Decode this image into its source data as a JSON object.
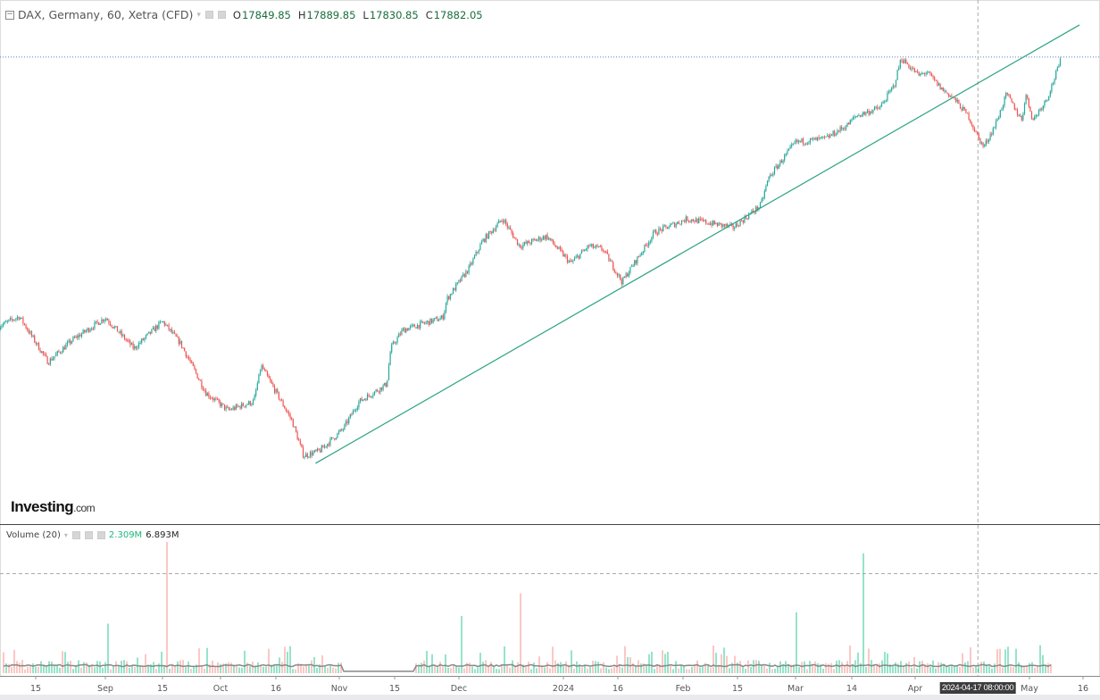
{
  "header": {
    "symbol": "DAX, Germany, 60, Xetra (CFD)",
    "open_label": "O",
    "open": "17849.85",
    "high_label": "H",
    "high": "17889.85",
    "low_label": "L",
    "low": "17830.85",
    "close_label": "C",
    "close": "17882.05"
  },
  "volume_pane": {
    "label": "Volume (20)",
    "current": "2.309M",
    "max": "6.893M"
  },
  "logo": {
    "brand": "Investing",
    "suffix": ".com"
  },
  "crosshair": {
    "label": "2024-04-17 08:00:00",
    "date": "2024-04-17"
  },
  "colors": {
    "up": "#26a69a",
    "down": "#ef5350",
    "trendline": "#2aa383",
    "hline": "#5b7fd6",
    "volume_up": "#4fd1a5",
    "volume_down": "#f7a39e",
    "volume_ma": "#888888"
  },
  "chart_data": {
    "type": "candlestick",
    "title": "DAX, Germany, 60, Xetra (CFD)",
    "x_ticks": [
      {
        "date": "2023-08-15",
        "label": "15"
      },
      {
        "date": "2023-09-01",
        "label": "Sep"
      },
      {
        "date": "2023-09-15",
        "label": "15"
      },
      {
        "date": "2023-10-01",
        "label": "Oct"
      },
      {
        "date": "2023-10-16",
        "label": "16"
      },
      {
        "date": "2023-11-01",
        "label": "Nov"
      },
      {
        "date": "2023-11-15",
        "label": "15"
      },
      {
        "date": "2023-12-01",
        "label": "Dec"
      },
      {
        "date": "2024-01-01",
        "label": "2024"
      },
      {
        "date": "2024-01-16",
        "label": "16"
      },
      {
        "date": "2024-02-01",
        "label": "Feb"
      },
      {
        "date": "2024-02-15",
        "label": "15"
      },
      {
        "date": "2024-03-01",
        "label": "Mar"
      },
      {
        "date": "2024-03-14",
        "label": "14"
      },
      {
        "date": "2024-04-01",
        "label": "Apr"
      },
      {
        "date": "2024-05-01",
        "label": "May"
      },
      {
        "date": "2024-05-16",
        "label": "16"
      }
    ],
    "price_path": [
      [
        "2023-08-06",
        15710
      ],
      [
        "2023-08-11",
        15790
      ],
      [
        "2023-08-18",
        15420
      ],
      [
        "2023-08-24",
        15600
      ],
      [
        "2023-09-01",
        15780
      ],
      [
        "2023-09-08",
        15530
      ],
      [
        "2023-09-15",
        15750
      ],
      [
        "2023-09-20",
        15570
      ],
      [
        "2023-09-27",
        15170
      ],
      [
        "2023-10-03",
        15030
      ],
      [
        "2023-10-10",
        15100
      ],
      [
        "2023-10-12",
        15390
      ],
      [
        "2023-10-20",
        14950
      ],
      [
        "2023-10-23",
        14660
      ],
      [
        "2023-10-27",
        14700
      ],
      [
        "2023-11-02",
        14880
      ],
      [
        "2023-11-06",
        15100
      ],
      [
        "2023-11-13",
        15240
      ],
      [
        "2023-11-14",
        15530
      ],
      [
        "2023-11-17",
        15680
      ],
      [
        "2023-11-27",
        15780
      ],
      [
        "2023-11-28",
        15930
      ],
      [
        "2023-12-04",
        16180
      ],
      [
        "2023-12-08",
        16400
      ],
      [
        "2023-12-14",
        16580
      ],
      [
        "2023-12-19",
        16360
      ],
      [
        "2023-12-27",
        16440
      ],
      [
        "2024-01-03",
        16220
      ],
      [
        "2024-01-08",
        16360
      ],
      [
        "2024-01-12",
        16330
      ],
      [
        "2024-01-17",
        16070
      ],
      [
        "2024-01-25",
        16470
      ],
      [
        "2024-02-02",
        16580
      ],
      [
        "2024-02-14",
        16510
      ],
      [
        "2024-02-21",
        16690
      ],
      [
        "2024-02-23",
        16910
      ],
      [
        "2024-03-01",
        17200
      ],
      [
        "2024-03-08",
        17230
      ],
      [
        "2024-03-13",
        17340
      ],
      [
        "2024-03-15",
        17410
      ],
      [
        "2024-03-22",
        17480
      ],
      [
        "2024-03-26",
        17660
      ],
      [
        "2024-03-28",
        17880
      ],
      [
        "2024-04-02",
        17740
      ],
      [
        "2024-04-04",
        17770
      ],
      [
        "2024-04-08",
        17630
      ],
      [
        "2024-04-11",
        17560
      ],
      [
        "2024-04-15",
        17410
      ],
      [
        "2024-04-17",
        17270
      ],
      [
        "2024-04-19",
        17160
      ],
      [
        "2024-04-22",
        17340
      ],
      [
        "2024-04-25",
        17590
      ],
      [
        "2024-04-29",
        17380
      ],
      [
        "2024-04-30",
        17590
      ],
      [
        "2024-05-02",
        17380
      ],
      [
        "2024-05-06",
        17560
      ],
      [
        "2024-05-10",
        17882.05
      ]
    ],
    "trendline": {
      "start": [
        "2023-10-26",
        14600
      ],
      "end": [
        "2024-05-15",
        18150
      ]
    },
    "horizontal_line": 17889.85,
    "volume": {
      "current": "2.309M",
      "ma_period": 20,
      "peak": "6.893M",
      "gap": [
        "2023-11-02",
        "2023-11-20"
      ]
    }
  }
}
